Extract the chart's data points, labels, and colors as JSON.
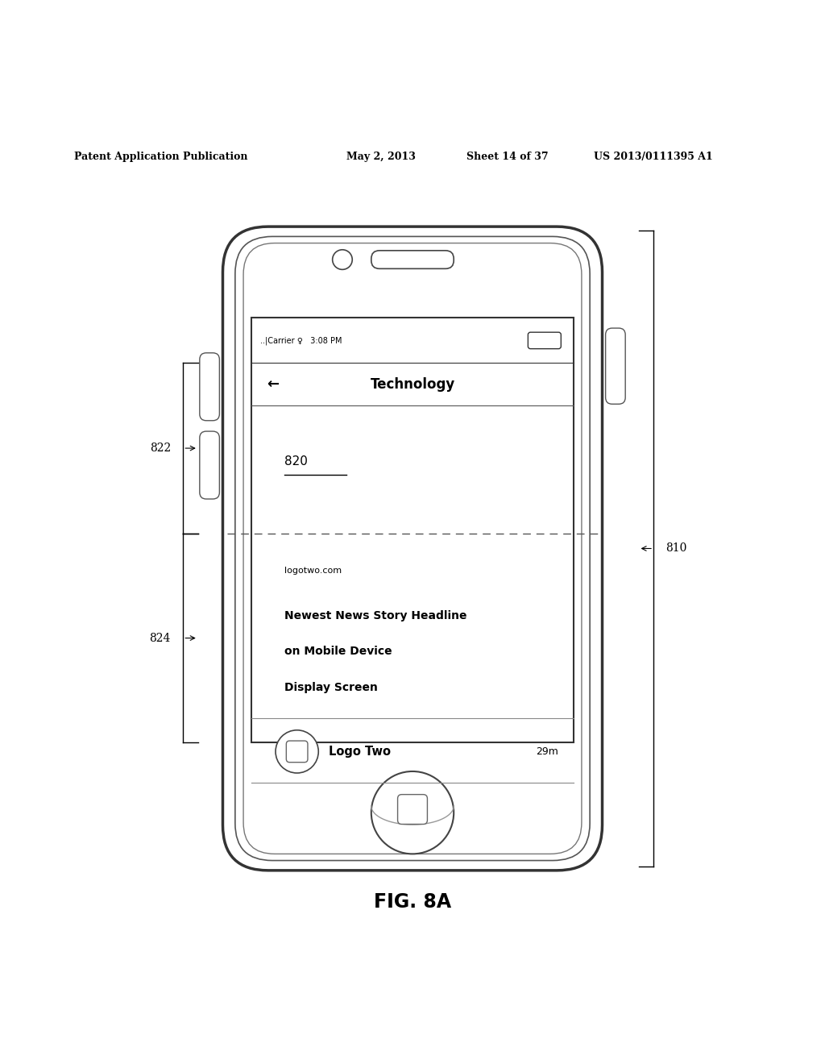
{
  "bg_color": "#ffffff",
  "header_text": "Patent Application Publication",
  "header_date": "May 2, 2013",
  "header_sheet": "Sheet 14 of 37",
  "header_patent": "US 2013/0111395 A1",
  "fig_label": "FIG. 8A",
  "status_bar_text": "..|Carrier    3:08 PM",
  "nav_title": "Technology",
  "nav_back": "←",
  "content_820_label": "820",
  "content_logotwo": "logotwo.com",
  "content_headline1": "Newest News Story Headline",
  "content_headline2": "on Mobile Device",
  "content_headline3": "Display Screen",
  "content_logo_label": "Logo Two",
  "content_time": "29m",
  "label_822": "822",
  "label_824": "824",
  "label_810": "810",
  "dashed_line_y": 0.498
}
